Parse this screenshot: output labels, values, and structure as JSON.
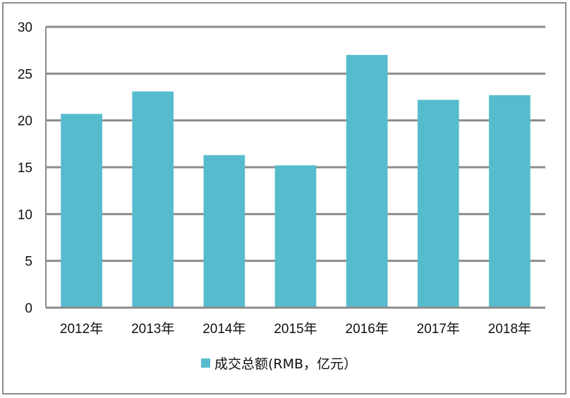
{
  "chart_data": {
    "type": "bar",
    "categories": [
      "2012年",
      "2013年",
      "2014年",
      "2015年",
      "2016年",
      "2017年",
      "2018年"
    ],
    "series": [
      {
        "name": "成交总额(RMB，亿元）",
        "values": [
          20.7,
          23.1,
          16.3,
          15.2,
          27.0,
          22.2,
          22.7
        ],
        "color": "#56bccd"
      }
    ],
    "ylim": [
      0,
      30
    ],
    "yticks": [
      0,
      5,
      10,
      15,
      20,
      25,
      30
    ],
    "grid": true,
    "legend_position": "bottom"
  }
}
